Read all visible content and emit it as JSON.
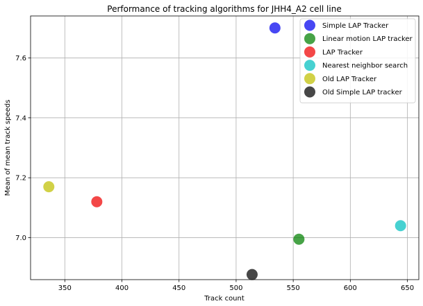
{
  "chart_data": {
    "type": "scatter",
    "title": "Performance of tracking algorithms for JHH4_A2 cell line",
    "xlabel": "Track count",
    "ylabel": "Mean of mean track speeds",
    "xlim": [
      320,
      660
    ],
    "ylim": [
      6.86,
      7.74
    ],
    "xticks": [
      350,
      400,
      450,
      500,
      550,
      600,
      650
    ],
    "yticks": [
      7.0,
      7.2,
      7.4,
      7.6
    ],
    "ytick_labels": [
      "7.0",
      "7.2",
      "7.4",
      "7.6"
    ],
    "grid": true,
    "legend_position": "top-right",
    "series": [
      {
        "name": "Simple LAP Tracker",
        "x": 534,
        "y": 7.7,
        "color": "#0000ee"
      },
      {
        "name": "Linear motion LAP tracker",
        "x": 555,
        "y": 6.995,
        "color": "#008000"
      },
      {
        "name": "LAP Tracker",
        "x": 378,
        "y": 7.12,
        "color": "#ee0000"
      },
      {
        "name": "Nearest neighbor search",
        "x": 644,
        "y": 7.04,
        "color": "#00bfbf"
      },
      {
        "name": "Old LAP Tracker",
        "x": 336,
        "y": 7.17,
        "color": "#bfbf00"
      },
      {
        "name": "Old Simple LAP tracker",
        "x": 514,
        "y": 6.877,
        "color": "#000000"
      }
    ]
  }
}
